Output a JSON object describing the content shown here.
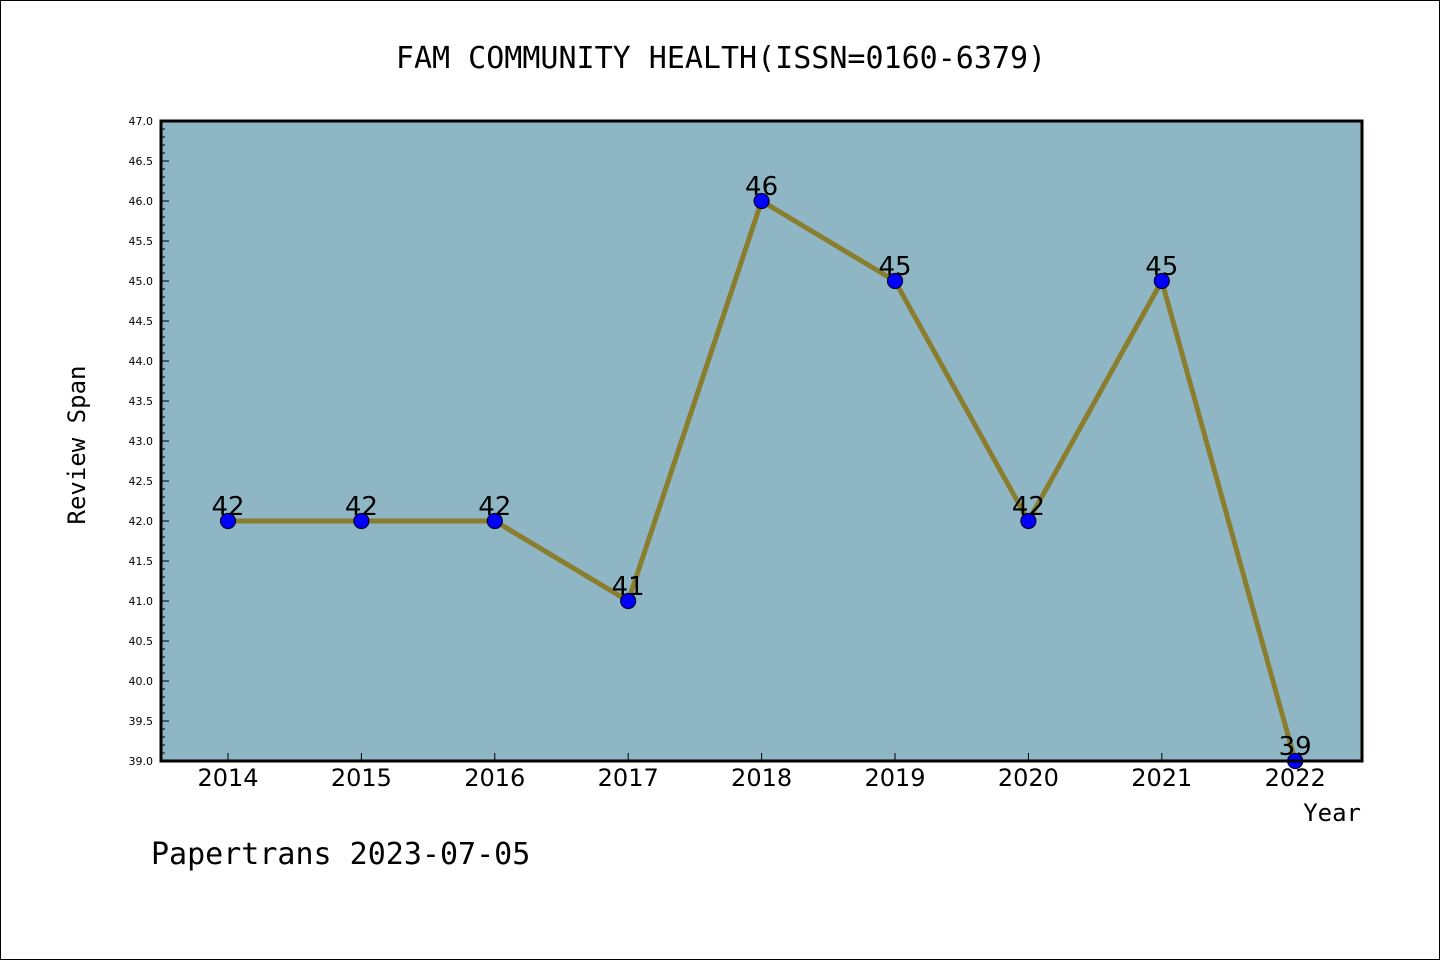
{
  "chart_data": {
    "type": "line",
    "title": "FAM COMMUNITY HEALTH(ISSN=0160-6379)",
    "xlabel": "Year",
    "ylabel": "Review Span",
    "categories": [
      "2014",
      "2015",
      "2016",
      "2017",
      "2018",
      "2019",
      "2020",
      "2021",
      "2022"
    ],
    "series": [
      {
        "values": [
          42,
          42,
          42,
          41,
          46,
          45,
          42,
          45,
          39
        ]
      }
    ],
    "ylim": [
      39.0,
      47.0
    ],
    "yticks": [
      "39.0",
      "39.5",
      "40.0",
      "40.5",
      "41.0",
      "41.5",
      "42.0",
      "42.5",
      "43.0",
      "43.5",
      "44.0",
      "44.5",
      "45.0",
      "45.5",
      "46.0",
      "46.5",
      "47.0"
    ],
    "grid": false,
    "colors": {
      "plot_background": "#8fb6c4",
      "line": "#8b7d2e",
      "marker": "#0000ff",
      "marker_edge": "#000033"
    }
  },
  "footer": {
    "watermark": "Papertrans 2023-07-05"
  }
}
